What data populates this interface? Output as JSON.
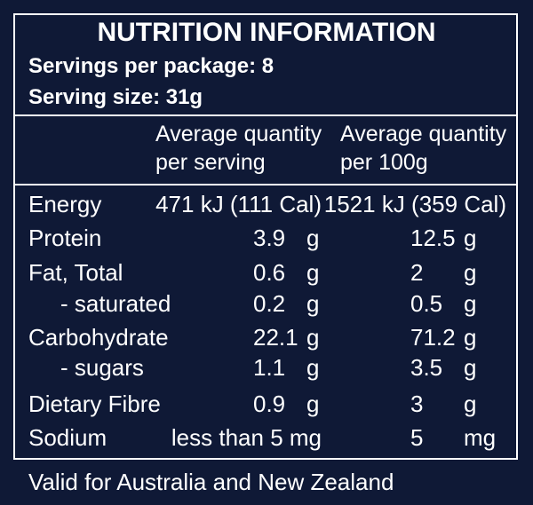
{
  "header": {
    "title": "NUTRITION INFORMATION",
    "servings": "Servings per package: 8",
    "serving_size": "Serving size: 31g"
  },
  "table": {
    "columns": [
      [
        "Average quantity",
        "per serving"
      ],
      [
        "Average quantity",
        "per 100g"
      ]
    ],
    "rows": [
      {
        "name": "Energy",
        "per_serving": "471 kJ (111 Cal)",
        "per_100g": "1521 kJ (359 Cal)"
      },
      {
        "name": "Protein",
        "per_serving": "3.9",
        "per_serving_unit": "g",
        "per_100g": "12.5",
        "per_100g_unit": "g"
      },
      {
        "name": "Fat, Total",
        "per_serving": "0.6",
        "per_serving_unit": "g",
        "per_100g": "2",
        "per_100g_unit": "g"
      },
      {
        "name": "- saturated",
        "per_serving": "0.2",
        "per_serving_unit": "g",
        "per_100g": "0.5",
        "per_100g_unit": "g"
      },
      {
        "name": "Carbohydrate",
        "per_serving": "22.1",
        "per_serving_unit": "g",
        "per_100g": "71.2",
        "per_100g_unit": "g"
      },
      {
        "name": "- sugars",
        "per_serving": "1.1",
        "per_serving_unit": "g",
        "per_100g": "3.5",
        "per_100g_unit": "g"
      },
      {
        "name": "Dietary Fibre",
        "per_serving": "0.9",
        "per_serving_unit": "g",
        "per_100g": "3",
        "per_100g_unit": "g"
      },
      {
        "name": "Sodium",
        "per_serving": "less than 5 mg",
        "per_100g": "5",
        "per_100g_unit": "mg"
      }
    ]
  },
  "footer": "Valid for Australia and New Zealand"
}
